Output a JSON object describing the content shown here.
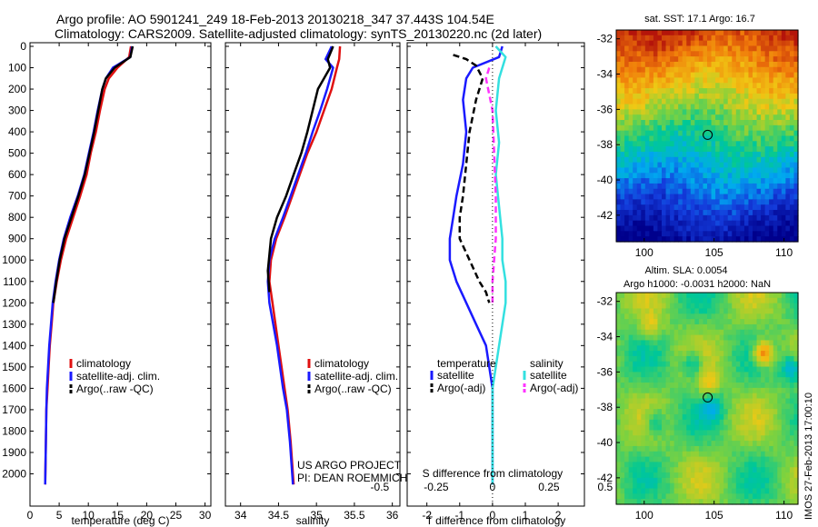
{
  "header": {
    "line1": "Argo profile: AO 5901241_249 18-Feb-2013 20130218_347 37.443S 104.54E",
    "line2": "Climatology: CARS2009. Satellite-adjusted climatology: synTS_20130220.nc (2d later)"
  },
  "side_stamp": "IMOS 27-Feb-2013 17:00:10",
  "credit": {
    "line1": "US ARGO PROJECT",
    "line2": "PI: DEAN ROEMMICH"
  },
  "colors": {
    "climatology": "#e01010",
    "satellite": "#1a1aff",
    "argo": "#000000",
    "satellite_s": "#33e0e0",
    "argo_s": "#ff33ff"
  },
  "chart_data": [
    {
      "type": "line",
      "id": "temperature",
      "xlabel": "temperature (deg C)",
      "ylabel": "",
      "xlim": [
        0,
        31
      ],
      "ylim": [
        2100,
        0
      ],
      "xticks": [
        0,
        5,
        10,
        15,
        20,
        25,
        30
      ],
      "yticks": [
        0,
        100,
        200,
        300,
        400,
        500,
        600,
        700,
        800,
        900,
        1000,
        1100,
        1200,
        1300,
        1400,
        1500,
        1600,
        1700,
        1800,
        1900,
        2000
      ],
      "legend": [
        "climatology",
        "satellite-adj. clim.",
        "Argo(..raw -QC)"
      ],
      "legend_position": "lower-right",
      "series": [
        {
          "name": "climatology",
          "color_key": "climatology",
          "x": [
            17.3,
            17.0,
            15.0,
            13.5,
            12.8,
            12.0,
            11.3,
            10.4,
            9.7,
            8.6,
            7.4,
            6.2,
            5.3,
            4.6,
            4.0,
            3.7,
            3.4,
            3.2,
            3.0,
            2.8,
            2.7,
            2.6
          ],
          "y": [
            0,
            50,
            100,
            150,
            200,
            300,
            400,
            500,
            600,
            700,
            800,
            900,
            1000,
            1100,
            1200,
            1300,
            1400,
            1500,
            1600,
            1700,
            1900,
            2050
          ]
        },
        {
          "name": "satellite-adj. clim.",
          "color_key": "satellite",
          "x": [
            17.5,
            17.2,
            14.2,
            13.0,
            12.4,
            11.6,
            10.9,
            10.1,
            9.3,
            8.2,
            6.9,
            5.8,
            5.0,
            4.4,
            3.9,
            3.6,
            3.3,
            3.1,
            2.9,
            2.8,
            2.7,
            2.6
          ],
          "y": [
            0,
            50,
            100,
            150,
            200,
            300,
            400,
            500,
            600,
            700,
            800,
            900,
            1000,
            1100,
            1200,
            1300,
            1400,
            1500,
            1600,
            1700,
            1900,
            2050
          ]
        },
        {
          "name": "Argo(..raw -QC)",
          "color_key": "argo",
          "x": [
            17.6,
            17.2,
            14.5,
            13.0,
            12.4,
            11.7,
            11.0,
            10.2,
            9.4,
            8.3,
            7.1,
            5.9,
            5.1,
            4.5,
            4.0
          ],
          "y": [
            0,
            50,
            100,
            150,
            200,
            300,
            400,
            500,
            600,
            700,
            800,
            900,
            1000,
            1100,
            1200
          ]
        }
      ]
    },
    {
      "type": "line",
      "id": "salinity",
      "xlabel": "salinity",
      "ylabel": "",
      "xlim": [
        33.8,
        36.1
      ],
      "ylim": [
        2100,
        0
      ],
      "xticks": [
        34,
        34.5,
        35,
        35.5,
        36
      ],
      "legend": [
        "climatology",
        "satellite-adj. clim.",
        "Argo(..raw -QC)"
      ],
      "legend_position": "lower-right",
      "series": [
        {
          "name": "climatology",
          "color_key": "climatology",
          "x": [
            35.31,
            35.3,
            35.27,
            35.2,
            35.1,
            35.0,
            34.88,
            34.78,
            34.68,
            34.58,
            34.47,
            34.4,
            34.38,
            34.42,
            34.46,
            34.5,
            34.54,
            34.58,
            34.62,
            34.66,
            34.7
          ],
          "y": [
            0,
            60,
            100,
            200,
            300,
            400,
            500,
            600,
            700,
            800,
            900,
            1000,
            1100,
            1200,
            1300,
            1400,
            1500,
            1600,
            1700,
            1850,
            2050
          ]
        },
        {
          "name": "satellite-adj. clim.",
          "color_key": "satellite",
          "x": [
            35.2,
            35.12,
            35.22,
            35.14,
            35.05,
            34.95,
            34.86,
            34.76,
            34.66,
            34.56,
            34.45,
            34.38,
            34.36,
            34.38,
            34.43,
            34.48,
            34.52,
            34.56,
            34.61,
            34.65,
            34.69
          ],
          "y": [
            0,
            60,
            100,
            200,
            300,
            400,
            500,
            600,
            700,
            800,
            900,
            1000,
            1100,
            1200,
            1300,
            1400,
            1500,
            1600,
            1700,
            1850,
            2050
          ]
        },
        {
          "name": "Argo(..raw -QC)",
          "color_key": "argo",
          "x": [
            35.22,
            35.15,
            35.18,
            35.02,
            34.95,
            34.88,
            34.8,
            34.7,
            34.6,
            34.48,
            34.4,
            34.36,
            34.38
          ],
          "y": [
            0,
            60,
            100,
            200,
            300,
            400,
            500,
            600,
            700,
            800,
            900,
            1050,
            1150
          ]
        }
      ]
    },
    {
      "type": "line",
      "id": "differences",
      "xlabel": "T difference from climatology",
      "secondary_xlabel": "S difference from climatology",
      "ylabel": "",
      "xlim": [
        -2.6,
        2.8
      ],
      "ylim": [
        2100,
        0
      ],
      "xticks": [
        -2,
        -1,
        0,
        1,
        2
      ],
      "secondary_xticks": [
        -0.5,
        -0.25,
        0,
        0.25,
        0.5
      ],
      "secondary_xtick_labels": [
        "-0.5",
        "-0.25",
        "0",
        "0.25",
        "0.5"
      ],
      "legend_groups": [
        {
          "title": "temperature",
          "entries": [
            "satellite",
            "Argo(-adj)"
          ]
        },
        {
          "title": "salinity",
          "entries": [
            "satellite",
            "Argo(-adj)"
          ]
        }
      ],
      "legend_position": "lower-center",
      "series": [
        {
          "name": "satellite",
          "group": "temperature",
          "color_key": "satellite",
          "x": [
            0.3,
            0.2,
            -0.6,
            -0.8,
            -0.9,
            -0.8,
            -0.9,
            -1.1,
            -1.2,
            -1.3,
            -1.3,
            -1.1,
            -0.8,
            -0.5,
            -0.2,
            0.0,
            0.0,
            0.0
          ],
          "y": [
            0,
            50,
            100,
            150,
            250,
            400,
            550,
            700,
            800,
            900,
            1000,
            1100,
            1200,
            1300,
            1400,
            1600,
            1800,
            2050
          ]
        },
        {
          "name": "Argo(-adj)",
          "group": "temperature",
          "color_key": "argo",
          "dash": true,
          "x": [
            -1.2,
            -0.8,
            -0.5,
            -0.3,
            -0.5,
            -0.7,
            -0.8,
            -0.9,
            -1.0,
            -1.0,
            -0.7,
            -0.4,
            -0.2,
            -0.1
          ],
          "y": [
            40,
            60,
            90,
            150,
            250,
            400,
            550,
            700,
            800,
            900,
            1000,
            1100,
            1150,
            1200
          ]
        },
        {
          "name": "satellite",
          "group": "salinity",
          "color_key": "satellite_s",
          "x": [
            0.1,
            0.4,
            0.2,
            0.1,
            0.2,
            0.1,
            0.2,
            0.3,
            0.3,
            0.4,
            0.4,
            0.3,
            0.2,
            0.0,
            0.0
          ],
          "y": [
            0,
            50,
            150,
            300,
            450,
            600,
            750,
            900,
            1000,
            1100,
            1200,
            1300,
            1400,
            1600,
            2050
          ]
        },
        {
          "name": "Argo(-adj)",
          "group": "salinity",
          "color_key": "argo_s",
          "dash": true,
          "x": [
            -0.1,
            -0.2,
            0.0,
            0.05,
            0.1,
            0.1,
            0.0,
            0.0
          ],
          "y": [
            100,
            150,
            300,
            500,
            700,
            900,
            1100,
            1200
          ]
        }
      ]
    },
    {
      "type": "heatmap",
      "id": "sst_map",
      "title": "sat. SST: 17.1  Argo: 16.7",
      "xlim": [
        98,
        111
      ],
      "ylim": [
        -43.5,
        -31.5
      ],
      "xticks": [
        100,
        105,
        110
      ],
      "yticks": [
        -32,
        -34,
        -36,
        -38,
        -40,
        -42
      ],
      "marker": {
        "lon": 104.54,
        "lat": -37.443
      }
    },
    {
      "type": "heatmap",
      "id": "sla_map",
      "title": "Altim. SLA: 0.0054",
      "subtitle": "Argo h1000: -0.0031  h2000: NaN",
      "xlim": [
        98,
        111
      ],
      "ylim": [
        -43.5,
        -31.5
      ],
      "xticks": [
        100,
        105,
        110
      ],
      "yticks": [
        -32,
        -34,
        -36,
        -38,
        -40,
        -42
      ],
      "marker": {
        "lon": 104.54,
        "lat": -37.443
      }
    }
  ]
}
